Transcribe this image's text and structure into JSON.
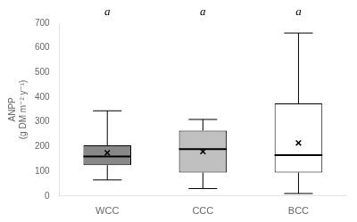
{
  "chart_data": {
    "type": "box",
    "categories": [
      "WCC",
      "CCC",
      "BCC"
    ],
    "boxes": [
      {
        "whislo": 65,
        "q1": 125,
        "med": 160,
        "q3": 205,
        "whishi": 345,
        "mean": 175
      },
      {
        "whislo": 30,
        "q1": 95,
        "med": 190,
        "q3": 265,
        "whishi": 310,
        "mean": 180
      },
      {
        "whislo": 10,
        "q1": 95,
        "med": 165,
        "q3": 375,
        "whishi": 660,
        "mean": 215
      }
    ],
    "colors": [
      "#888888",
      "#c0c0c0",
      "#ffffff"
    ],
    "marker": "x",
    "ylabel": "ANPP\n(g DM m⁻² y⁻¹)",
    "annotations": [
      "a",
      "a",
      "a"
    ],
    "ylim": [
      0,
      700
    ],
    "yticks": [
      0,
      100,
      200,
      300,
      400,
      500,
      600,
      700
    ],
    "grid": false
  }
}
